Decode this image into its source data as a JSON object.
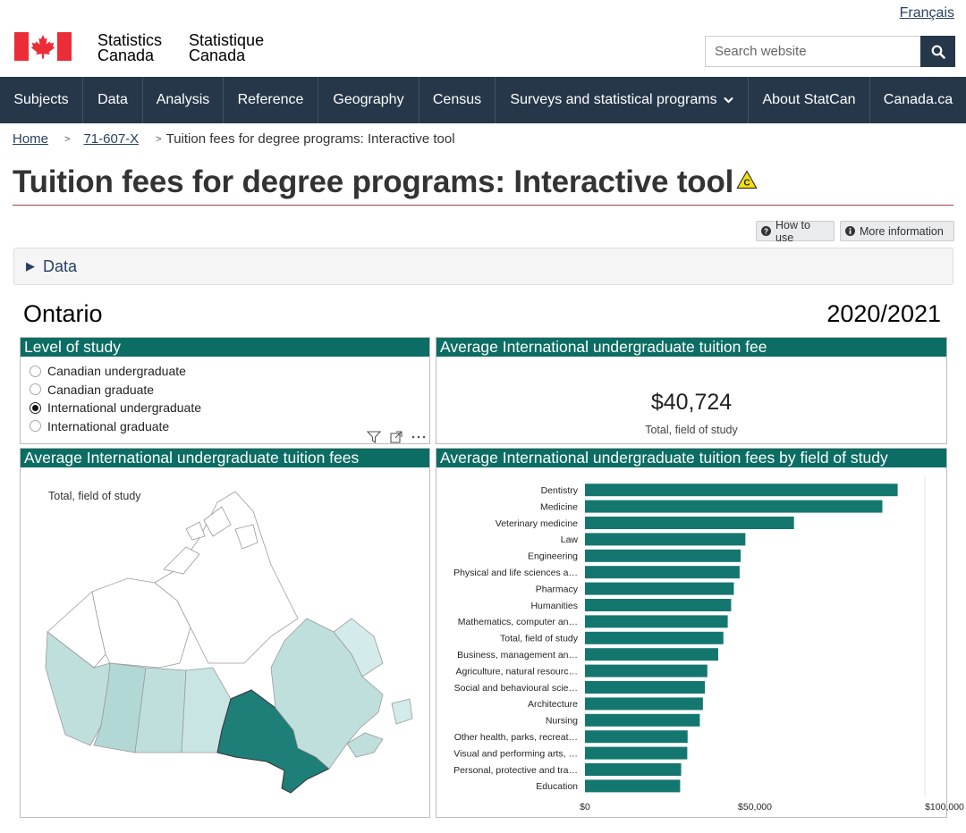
{
  "header": {
    "language_link": "Français",
    "brand_line1_en": "Statistics",
    "brand_line2_en": "Canada",
    "brand_line1_fr": "Statistique",
    "brand_line2_fr": "Canada",
    "search_placeholder": "Search website",
    "search_icon": "search-icon"
  },
  "nav": {
    "items": [
      {
        "label": "Subjects"
      },
      {
        "label": "Data"
      },
      {
        "label": "Analysis"
      },
      {
        "label": "Reference"
      },
      {
        "label": "Geography"
      },
      {
        "label": "Census"
      },
      {
        "label": "Surveys and statistical programs"
      },
      {
        "label": "About StatCan"
      },
      {
        "label": "Canada.ca"
      }
    ]
  },
  "breadcrumb": {
    "home": "Home",
    "catalogue": "71-607-X",
    "current": "Tuition fees for degree programs: Interactive tool"
  },
  "page": {
    "title": "Tuition fees for degree programs: Interactive tool",
    "how_to_use": "How to use",
    "more_information": "More information",
    "data_toggle": "Data",
    "region": "Ontario",
    "year": "2020/2021"
  },
  "level_of_study": {
    "title": "Level of study",
    "options": [
      {
        "label": "Canadian undergraduate",
        "selected": false
      },
      {
        "label": "Canadian graduate",
        "selected": false
      },
      {
        "label": "International undergraduate",
        "selected": true
      },
      {
        "label": "International graduate",
        "selected": false
      }
    ]
  },
  "kpi": {
    "title": "Average International undergraduate tuition fee",
    "value": "$40,724",
    "label": "Total, field of study"
  },
  "map": {
    "title": "Average International undergraduate tuition fees",
    "label": "Total, field of study",
    "highlight_color": "#1e7f78",
    "light_color": "#bfdfdd"
  },
  "chart_data": {
    "type": "bar",
    "orientation": "horizontal",
    "title": "Average International undergraduate tuition fees by field of study",
    "categories": [
      "Dentistry",
      "Medicine",
      "Veterinary medicine",
      "Law",
      "Engineering",
      "Physical and life sciences a…",
      "Pharmacy",
      "Humanities",
      "Mathematics, computer an…",
      "Total, field of study",
      "Business, management an…",
      "Agriculture, natural resourc…",
      "Social and behavioural scie…",
      "Architecture",
      "Nursing",
      "Other health, parks, recreat…",
      "Visual and performing arts, …",
      "Personal, protective and tra…",
      "Education"
    ],
    "values": [
      92000,
      87500,
      61500,
      47200,
      45800,
      45500,
      43800,
      43000,
      42000,
      40724,
      39200,
      36000,
      35300,
      34700,
      33800,
      30200,
      30100,
      28300,
      28000
    ],
    "xlim": [
      0,
      100000
    ],
    "ticks": [
      "$0",
      "$50,000",
      "$100,000"
    ],
    "tick_values": [
      0,
      50000,
      100000
    ],
    "bar_color": "#14776f",
    "grid": false
  }
}
